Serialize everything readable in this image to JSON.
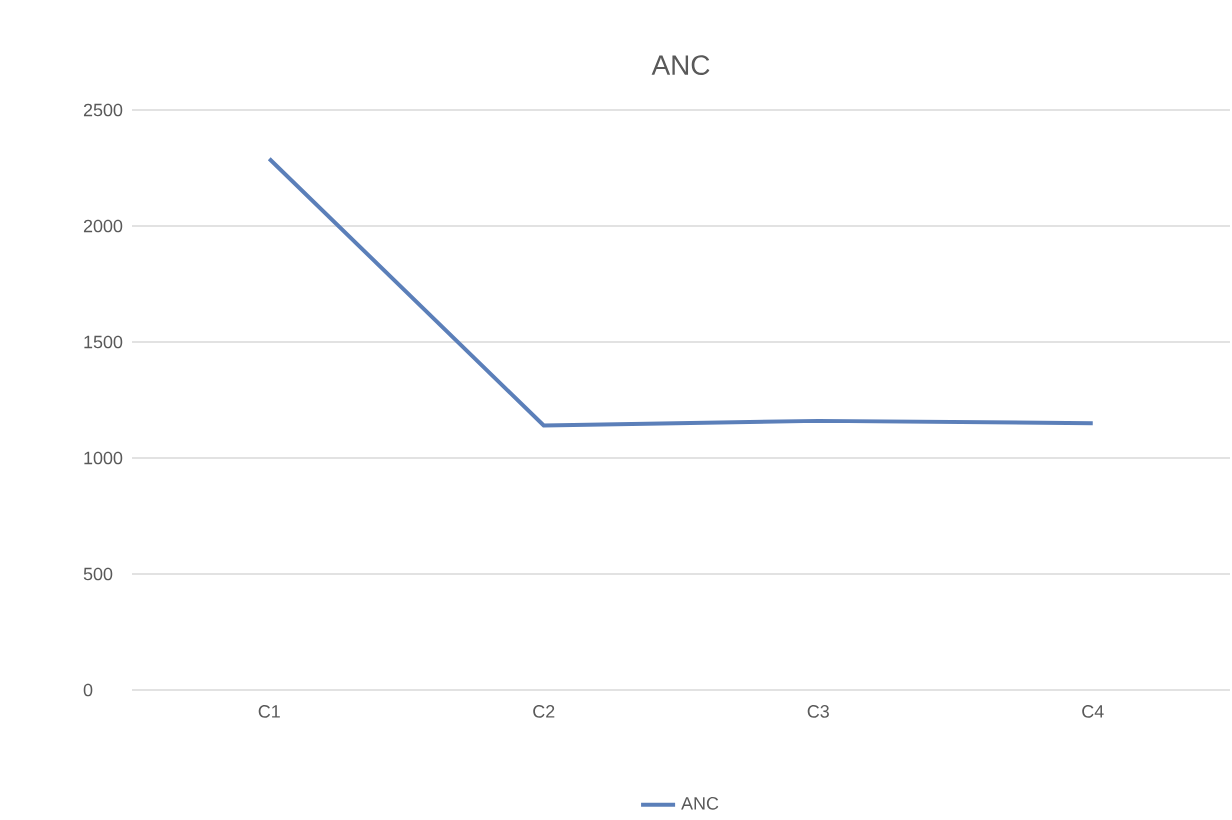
{
  "chart_data": {
    "type": "line",
    "title": "ANC",
    "categories": [
      "C1",
      "C2",
      "C3",
      "C4"
    ],
    "series": [
      {
        "name": "ANC",
        "color": "#5b7fb9",
        "values": [
          2290,
          1140,
          1160,
          1150
        ]
      }
    ],
    "ylim": [
      0,
      2500
    ],
    "yticks": [
      0,
      500,
      1000,
      1500,
      2000,
      2500
    ],
    "grid": "y",
    "legend": "bottom",
    "marker": "none",
    "line_style": "solid"
  }
}
